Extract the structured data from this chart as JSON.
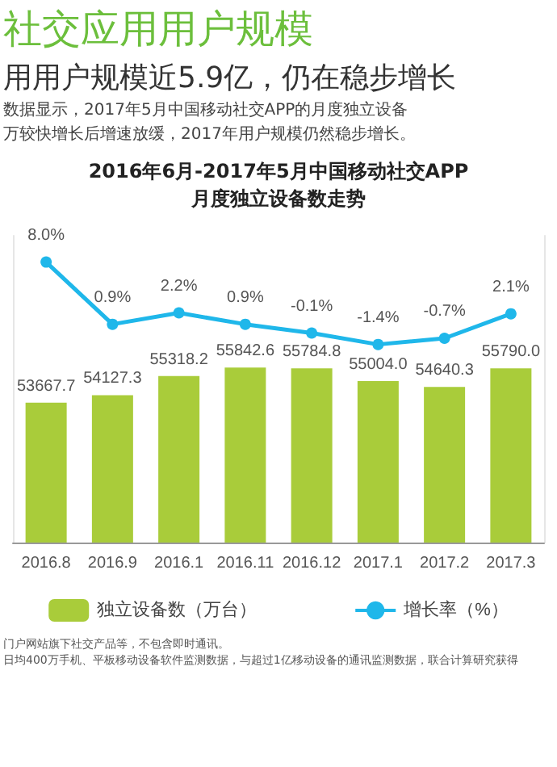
{
  "chart_data": {
    "type": "bar",
    "title": "社交应用用户规模",
    "subtitle": "用用户规模近5.9亿，仍在稳步增长",
    "annotations": [
      "数据显示，2017年5月中国移动社交APP的月度独立设备",
      "万较快增长后增速放缓，2017年用户规模仍然稳步增长。",
      "2016年6月-2017年5月中国移动社交APP",
      "月度独立设备数走势",
      "门户网站旗下社交产品等，不包含即时通讯。",
      "日均400万手机、平板移动设备软件监测数据，与超过1亿移动设备的通讯监测数据，联合计算研究获得"
    ],
    "categories": [
      "2016.8",
      "2016.9",
      "2016.1",
      "2016.11",
      "2016.12",
      "2017.1",
      "2017.2",
      "2017.3"
    ],
    "series": [
      {
        "name": "独立设备数（万台）",
        "color": "#a9cc3a",
        "values": [
          53667.7,
          54127.3,
          55318.2,
          55842.6,
          55784.8,
          55004.0,
          54640.3,
          55790.0
        ],
        "value_labels": [
          "53667.7",
          "54127.3",
          "55318.2",
          "55842.6",
          "55784.8",
          "55004.0",
          "54640.3",
          "55790.0"
        ]
      },
      {
        "type": "line",
        "name": "增长率（%）",
        "color": "#1fb7ea",
        "axis": "y2",
        "values": [
          8.0,
          0.9,
          2.2,
          0.9,
          -0.1,
          -1.4,
          -0.7,
          2.1
        ],
        "value_labels": [
          "8.0%",
          "0.9%",
          "2.2%",
          "0.9%",
          "-0.1%",
          "-1.4%",
          "-0.7%",
          "2.1%"
        ]
      }
    ],
    "ylim": [
      45000,
      64000
    ],
    "y2lim": [
      -24,
      11
    ],
    "tick_labels": "x",
    "legend": "bottom",
    "marker": "circle",
    "grid": false
  }
}
